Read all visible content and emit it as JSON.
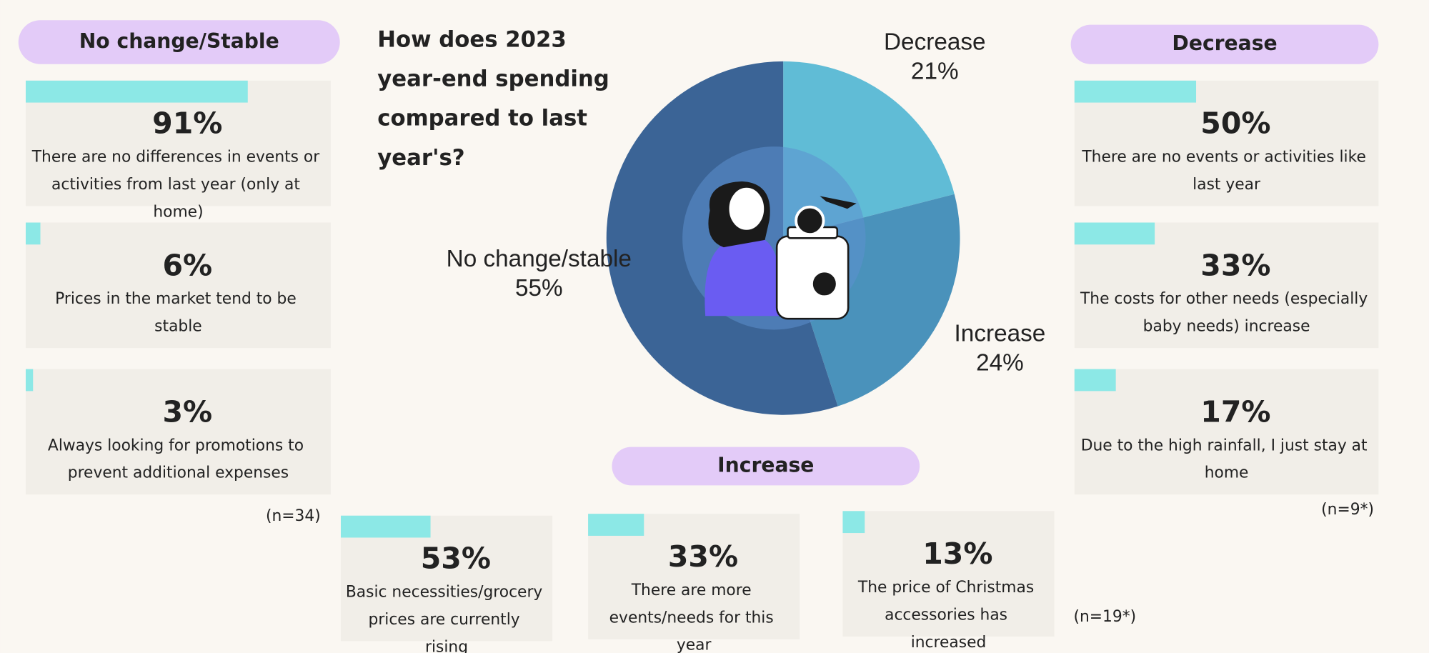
{
  "chart_data": [
    {
      "type": "pie",
      "title": "How does 2023 year-end spending compared to last year's?",
      "categories": [
        "Decrease",
        "Increase",
        "No change/stable"
      ],
      "values": [
        21,
        24,
        55
      ],
      "value_labels": [
        "21%",
        "24%",
        "55%"
      ],
      "colors": [
        "#60bcd6",
        "#4a92bb",
        "#3b6496"
      ]
    },
    {
      "type": "bar",
      "title": "No change/Stable",
      "note": "(n=34)",
      "color": "#8ce8e6",
      "panel_color": "#e3cbf8",
      "categories": [
        "There are no differences in events or activities from last year (only at home)",
        "Prices in the market tend to be stable",
        "Always looking for promotions to prevent additional expenses"
      ],
      "values": [
        91,
        6,
        3
      ],
      "value_labels": [
        "91%",
        "6%",
        "3%"
      ]
    },
    {
      "type": "bar",
      "title": "Decrease",
      "note": "(n=9*)",
      "color": "#8ce8e6",
      "panel_color": "#e3cbf8",
      "categories": [
        "There are no events or activities like last year",
        "The costs for other needs (especially baby needs) increase",
        "Due to the high rainfall, I just stay at home"
      ],
      "values": [
        50,
        33,
        17
      ],
      "value_labels": [
        "50%",
        "33%",
        "17%"
      ]
    },
    {
      "type": "bar",
      "title": "Increase",
      "note": "(n=19*)",
      "color": "#8ce8e6",
      "panel_color": "#e3cbf8",
      "categories": [
        "Basic necessities/grocery prices are currently rising",
        "There are more events/needs for this year",
        "The price of Christmas accessories has increased"
      ],
      "values": [
        53,
        33,
        13
      ],
      "value_labels": [
        "53%",
        "33%",
        "13%"
      ]
    }
  ]
}
